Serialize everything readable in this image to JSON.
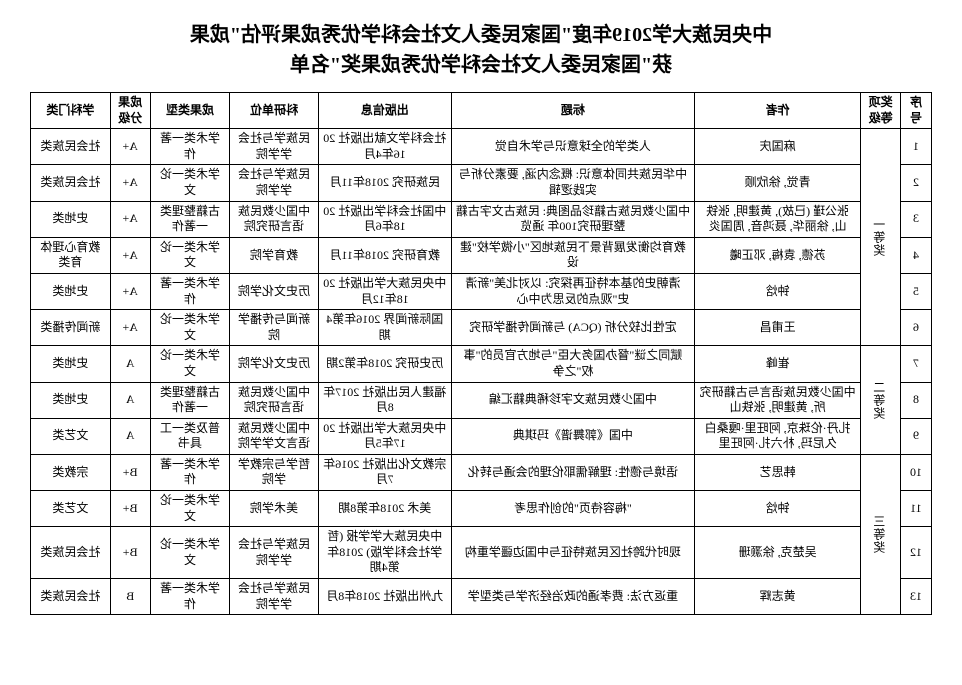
{
  "title_line1": "中央民族大学2019年度\"国家民委人文社会科学优秀成果评估\"成果",
  "title_line2": "获\"国家民委人文社会科学优秀成果奖\"名单",
  "columns": [
    "序号",
    "奖项等级",
    "作者",
    "标题",
    "出版信息",
    "科研单位",
    "成果类型",
    "成果分级",
    "学科门类"
  ],
  "prize_groups": [
    {
      "label": "一等奖",
      "span": 6
    },
    {
      "label": "二等奖",
      "span": 3
    },
    {
      "label": "三等奖",
      "span": 4
    }
  ],
  "rows": [
    {
      "no": "1",
      "author": "麻国庆",
      "title": "人类学的全球意识与学术自觉",
      "pub": "社会科学文献出版社 2016年4月",
      "dept": "民族学与社会学学院",
      "type": "学术类一著作",
      "grade": "A+",
      "disc": "社会民族类"
    },
    {
      "no": "2",
      "author": "青觉, 徐欣顺",
      "title": "中华民族共同体意识: 概念内涵, 要素分析与实践逻辑",
      "pub": "民族研究 2018年11月",
      "dept": "民族学与社会学学院",
      "type": "学术类一论文",
      "grade": "A+",
      "disc": "社会民族类"
    },
    {
      "no": "3",
      "author": "张公瑾 (已故), 黄建明, 张铁山, 徐丽华, 聂鸿音, 周国炎",
      "title": "中国少数民族古籍珍品图典: 民族古文字古籍整理研究100年 通览",
      "pub": "中国社会科学出版社 2018年6月",
      "dept": "中国少数民族语言研究院",
      "type": "古籍整理类一著作",
      "grade": "A+",
      "disc": "史地类"
    },
    {
      "no": "4",
      "author": "苏德, 袁梅, 邓正曦",
      "title": "教育均衡发展背景下民族地区\"小微学校\"建设",
      "pub": "教育研究 2018年11月",
      "dept": "教育学院",
      "type": "学术类一论文",
      "grade": "A+",
      "disc": "教育心理体育类"
    },
    {
      "no": "5",
      "author": "钟焓",
      "title": "清朝史的基本特征再探究: 以对北美\"新清史\"观点的反思为中心",
      "pub": "中央民族大学出版社 2018年12月",
      "dept": "历史文化学院",
      "type": "学术类一著作",
      "grade": "A+",
      "disc": "史地类"
    },
    {
      "no": "6",
      "author": "王甫昌",
      "title": "定性比较分析 (QCA) 与新闻传播学研究",
      "pub": "国际新闻界 2016年第4期",
      "dept": "新闻与传播学院",
      "type": "学术类一论文",
      "grade": "A+",
      "disc": "新闻传播类"
    },
    {
      "no": "7",
      "author": "崔峰",
      "title": "赋同之谜\"督办国务大臣\"与地方官员的\"事权\"之争",
      "pub": "历史研究 2018年第2期",
      "dept": "历史文化学院",
      "type": "学术类一论文",
      "grade": "A",
      "disc": "史地类"
    },
    {
      "no": "8",
      "author": "中国少数民族语言与古籍研究所, 黄建明, 张铁山",
      "title": "中国少数民族文字珍稀典籍汇编",
      "pub": "福建人民出版社 2017年8月",
      "dept": "中国少数民族语言研究院",
      "type": "古籍整理类一著作",
      "grade": "A",
      "disc": "史地类"
    },
    {
      "no": "9",
      "author": "扎丹·伦珠京, 阿旺里·嘎桑白久尼玛, 朴六扎·阿旺里",
      "title": "中国《郭舞谱》玛琪典",
      "pub": "中央民族大学出版社 2017年5月",
      "dept": "中国少数民族语言文学学院",
      "type": "普及类一工具书",
      "grade": "A",
      "disc": "文艺类"
    },
    {
      "no": "10",
      "author": "韩思艺",
      "title": "语境与德性: 理解儒耶伦理的会通与转化",
      "pub": "宗教文化出版社 2016年7月",
      "dept": "哲学与宗教学学院",
      "type": "学术类一著作",
      "grade": "B+",
      "disc": "宗教类"
    },
    {
      "no": "11",
      "author": "钟焓",
      "title": "\"梅容待页\"的创作思考",
      "pub": "美术 2018年第8期",
      "dept": "美术学院",
      "type": "学术类一论文",
      "grade": "B+",
      "disc": "文艺类"
    },
    {
      "no": "12",
      "author": "吴楚克, 徐灏珊",
      "title": "现时代跨社区民族特征与中国边疆学重构",
      "pub": "中央民族大学学报 (哲学社会科学版) 2018年第4期",
      "dept": "民族学与社会学学院",
      "type": "学术类一论文",
      "grade": "B+",
      "disc": "社会民族类"
    },
    {
      "no": "13",
      "author": "黄志辉",
      "title": "重返方法: 费孝通的政治经济学与类型学",
      "pub": "九州出版社 2018年8月",
      "dept": "民族学与社会学学院",
      "type": "学术类一著作",
      "grade": "B",
      "disc": "社会民族类"
    }
  ]
}
